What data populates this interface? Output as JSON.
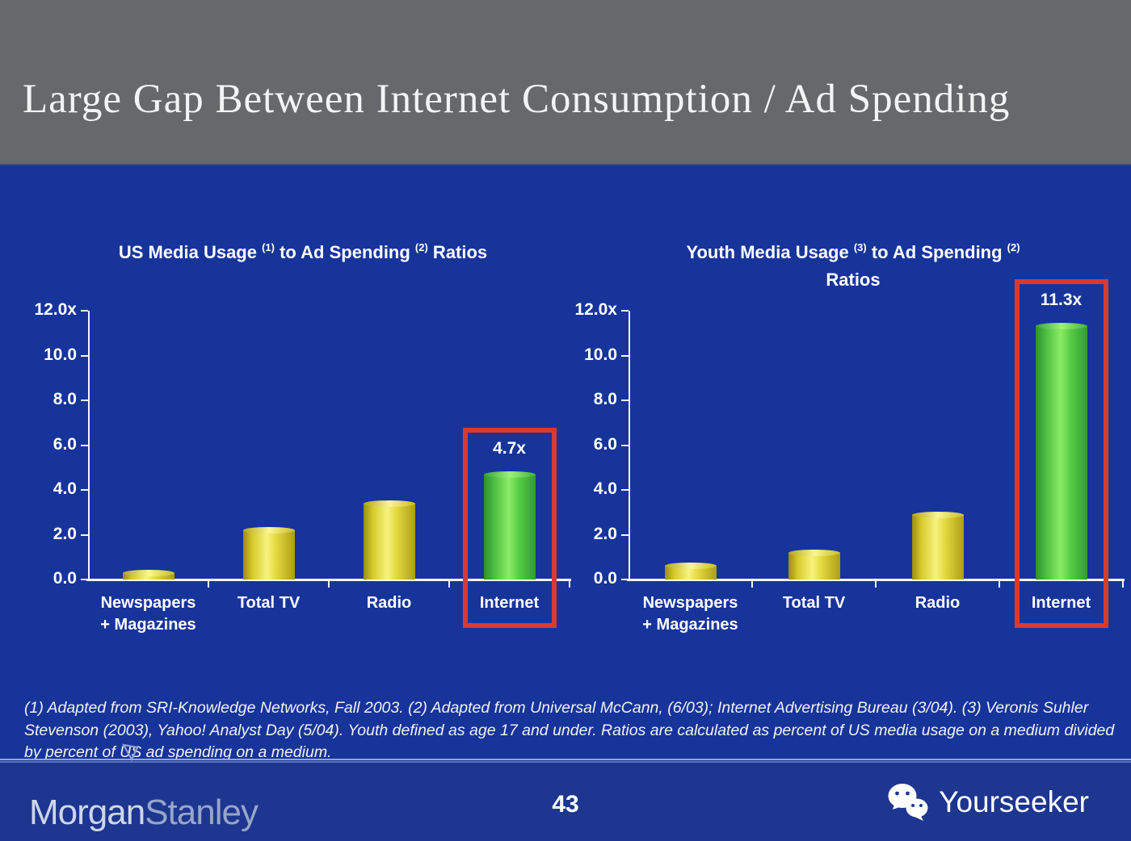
{
  "slide": {
    "title": "Large Gap Between Internet Consumption / Ad Spending",
    "page_number": "43",
    "footnote": "(1) Adapted from SRI-Knowledge Networks, Fall 2003.  (2) Adapted from Universal McCann, (6/03); Internet Advertising Bureau (3/04). (3) Veronis Suhler Stevenson (2003), Yahoo! Analyst Day (5/04).  Youth defined as age 17 and under.  Ratios are calculated as percent of US media usage on a medium divided by percent of US ad spending on a medium."
  },
  "branding": {
    "morgan": "Morgan",
    "stanley": "Stanley",
    "watermark": "Yourseeker",
    "icons": [
      "morgan-stanley-pennant-icon",
      "wechat-icon"
    ]
  },
  "colors": {
    "header_bg": "#66686A",
    "body_bg": "#17349B",
    "footer_bg": "#1D368F",
    "bar_yellow": "#E8DD3A",
    "bar_green": "#52C93F",
    "highlight_red": "#DC392B",
    "text": "#FFFFFF"
  },
  "chart_data": [
    {
      "type": "bar",
      "title": "US Media Usage (1) to Ad Spending (2) Ratios",
      "title_parts": [
        {
          "t": "text",
          "v": "US Media Usage "
        },
        {
          "t": "sup",
          "v": "(1)"
        },
        {
          "t": "text",
          "v": " to Ad Spending "
        },
        {
          "t": "sup",
          "v": "(2)"
        },
        {
          "t": "text",
          "v": " Ratios"
        }
      ],
      "categories": [
        "Newspapers + Magazines",
        "Total TV",
        "Radio",
        "Internet"
      ],
      "category_lines": [
        [
          "Newspapers",
          "+ Magazines"
        ],
        [
          "Total TV"
        ],
        [
          "Radio"
        ],
        [
          "Internet"
        ]
      ],
      "values": [
        0.3,
        2.2,
        3.4,
        4.7
      ],
      "bar_colors": [
        "yellow",
        "yellow",
        "yellow",
        "green"
      ],
      "data_labels": [
        "",
        "",
        "",
        "4.7x"
      ],
      "highlight_index": 3,
      "xlabel": "",
      "ylabel": "",
      "ylim": [
        0,
        12
      ],
      "y_tick_labels": [
        "12.0x",
        "10.0",
        "8.0",
        "6.0",
        "4.0",
        "2.0",
        "0.0"
      ],
      "grid": false,
      "legend": "none"
    },
    {
      "type": "bar",
      "title": "Youth Media Usage (3) to Ad Spending (2) Ratios",
      "title_parts": [
        {
          "t": "text",
          "v": "Youth Media Usage "
        },
        {
          "t": "sup",
          "v": "(3)"
        },
        {
          "t": "text",
          "v": " to Ad Spending "
        },
        {
          "t": "sup",
          "v": "(2)"
        },
        {
          "t": "br",
          "v": ""
        },
        {
          "t": "text",
          "v": "Ratios"
        }
      ],
      "categories": [
        "Newspapers + Magazines",
        "Total TV",
        "Radio",
        "Internet"
      ],
      "category_lines": [
        [
          "Newspapers",
          "+ Magazines"
        ],
        [
          "Total TV"
        ],
        [
          "Radio"
        ],
        [
          "Internet"
        ]
      ],
      "values": [
        0.6,
        1.2,
        2.9,
        11.3
      ],
      "bar_colors": [
        "yellow",
        "yellow",
        "yellow",
        "green"
      ],
      "data_labels": [
        "",
        "",
        "",
        "11.3x"
      ],
      "highlight_index": 3,
      "xlabel": "",
      "ylabel": "",
      "ylim": [
        0,
        12
      ],
      "y_tick_labels": [
        "12.0x",
        "10.0",
        "8.0",
        "6.0",
        "4.0",
        "2.0",
        "0.0"
      ],
      "grid": false,
      "legend": "none"
    }
  ]
}
